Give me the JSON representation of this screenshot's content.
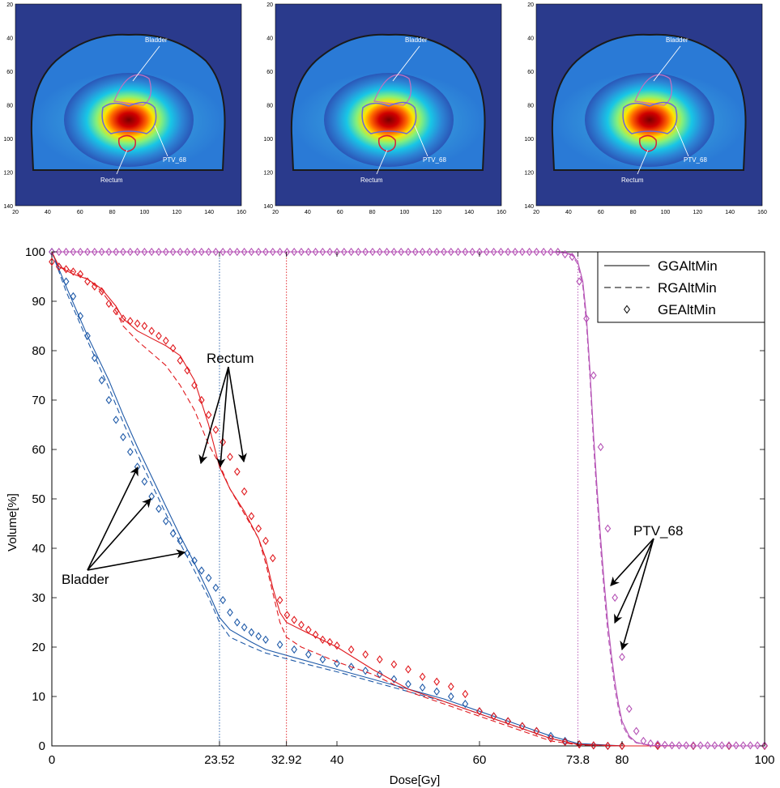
{
  "colors": {
    "background_field": "#2a3a8c",
    "body_outline": "#1a1a1a",
    "label_white": "#ffffff",
    "bladder": "#1f5aa8",
    "rectum": "#e0191e",
    "ptv": "#b552b5",
    "contour_bladder_overlay": "#c070c0",
    "contour_rectum_overlay": "#d8203a",
    "contour_ptv_overlay": "#6a6ad8"
  },
  "dose_maps": {
    "panels": [
      {
        "labels": {
          "bladder": "Bladder",
          "ptv": "PTV_68",
          "rectum": "Rectum"
        }
      },
      {
        "labels": {
          "bladder": "Bladder",
          "ptv": "PTV_68",
          "rectum": "Rectum"
        }
      },
      {
        "labels": {
          "bladder": "Bladder",
          "ptv": "PTV_68",
          "rectum": "Rectum"
        }
      }
    ],
    "y_ticks": [
      "20",
      "40",
      "60",
      "80",
      "100",
      "120",
      "140"
    ],
    "x_ticks": [
      "20",
      "40",
      "60",
      "80",
      "100",
      "120",
      "140",
      "160"
    ]
  },
  "chart_data": {
    "type": "line",
    "xlabel": "Dose[Gy]",
    "ylabel": "Volume[%]",
    "xlim": [
      0,
      100
    ],
    "ylim": [
      0,
      100
    ],
    "xticks": [
      0,
      23.52,
      32.92,
      40,
      60,
      73.8,
      80,
      100
    ],
    "xtick_labels": [
      "0",
      "23.52",
      "32.92",
      "40",
      "60",
      "73.8",
      "80",
      "100"
    ],
    "yticks": [
      0,
      10,
      20,
      30,
      40,
      50,
      60,
      70,
      80,
      90,
      100
    ],
    "ytick_labels": [
      "0",
      "10",
      "20",
      "30",
      "40",
      "50",
      "60",
      "70",
      "80",
      "90",
      "100"
    ],
    "reference_lines": [
      {
        "x": 23.52,
        "color": "#1f5aa8"
      },
      {
        "x": 32.92,
        "color": "#e0191e"
      },
      {
        "x": 73.8,
        "color": "#b552b5"
      }
    ],
    "legend": {
      "position": "top-right",
      "entries": [
        {
          "label": "GGAltMin",
          "style": "solid"
        },
        {
          "label": "RGAltMin",
          "style": "dashed"
        },
        {
          "label": "GEAltMin",
          "style": "diamond"
        }
      ]
    },
    "annotations": [
      {
        "text": "Rectum"
      },
      {
        "text": "Bladder"
      },
      {
        "text": "PTV_68"
      }
    ],
    "series": [
      {
        "structure": "Bladder",
        "method": "GGAltMin",
        "style": "solid",
        "color": "#1f5aa8",
        "x": [
          0,
          2,
          5,
          8,
          10,
          12,
          14,
          16,
          18,
          20,
          22,
          23.52,
          25,
          28,
          30,
          35,
          40,
          45,
          50,
          55,
          60,
          65,
          70,
          73.8,
          80,
          90,
          100
        ],
        "y": [
          100,
          93,
          83,
          74,
          67,
          60.5,
          54.5,
          48.5,
          42.5,
          37,
          31,
          26,
          23.5,
          21,
          19.5,
          17.5,
          15.5,
          13.5,
          11.5,
          9.5,
          7,
          4.5,
          2,
          0.5,
          0,
          0,
          0
        ]
      },
      {
        "structure": "Bladder",
        "method": "RGAltMin",
        "style": "dashed",
        "color": "#1f5aa8",
        "x": [
          0,
          2,
          5,
          8,
          10,
          12,
          14,
          16,
          18,
          20,
          22,
          23.52,
          25,
          28,
          30,
          35,
          40,
          45,
          50,
          55,
          60,
          65,
          70,
          73.8,
          80,
          90,
          100
        ],
        "y": [
          100,
          92,
          82,
          72.5,
          65.5,
          59,
          53,
          47,
          41,
          35.5,
          30,
          25,
          22,
          20,
          18.8,
          16.8,
          15,
          13,
          11,
          9,
          6.5,
          4,
          1.5,
          0.3,
          0,
          0,
          0
        ]
      },
      {
        "structure": "Bladder",
        "method": "GEAltMin",
        "style": "diamond",
        "color": "#1f5aa8",
        "x": [
          0,
          1,
          2,
          3,
          4,
          5,
          6,
          7,
          8,
          9,
          10,
          11,
          12,
          13,
          14,
          15,
          16,
          17,
          18,
          19,
          20,
          21,
          22,
          23,
          24,
          25,
          26,
          27,
          28,
          29,
          30,
          32,
          34,
          36,
          38,
          40,
          42,
          44,
          46,
          48,
          50,
          52,
          54,
          56,
          58,
          60,
          62,
          64,
          66,
          68,
          70,
          72,
          74,
          76,
          78,
          80,
          85,
          90,
          95,
          100
        ],
        "y": [
          100,
          97,
          94,
          91,
          87,
          83,
          78.5,
          74,
          70,
          66,
          62.5,
          59.5,
          56.5,
          53.5,
          50.5,
          48,
          45.5,
          43,
          41.5,
          39,
          37.5,
          35.5,
          34,
          32,
          29.5,
          27,
          25,
          24,
          23,
          22.2,
          21.5,
          20.5,
          19.5,
          18.5,
          17.5,
          16.7,
          16,
          15.2,
          14.5,
          13.5,
          12.5,
          11.8,
          11,
          10,
          8.5,
          7,
          6,
          5,
          4,
          3,
          2,
          1,
          0.3,
          0.1,
          0,
          0,
          0,
          0,
          0,
          0
        ]
      },
      {
        "structure": "Rectum",
        "method": "GGAltMin",
        "style": "solid",
        "color": "#e0191e",
        "x": [
          0,
          1,
          3,
          5,
          7,
          9,
          10,
          12,
          14,
          16,
          18,
          20,
          22,
          23.52,
          25,
          27,
          29,
          30,
          31,
          32,
          32.92,
          35,
          40,
          45,
          50,
          55,
          60,
          65,
          70,
          73.8,
          80,
          90,
          100
        ],
        "y": [
          100,
          97,
          95.5,
          94.5,
          92.5,
          89,
          86.5,
          84,
          82.5,
          81,
          79,
          74,
          65,
          56.5,
          52,
          47.5,
          42,
          38,
          32,
          27,
          25,
          23.5,
          20,
          15.5,
          11.5,
          9,
          6.5,
          4,
          1.5,
          0.3,
          0,
          0,
          0
        ]
      },
      {
        "structure": "Rectum",
        "method": "RGAltMin",
        "style": "dashed",
        "color": "#e0191e",
        "x": [
          0,
          1,
          3,
          5,
          7,
          9,
          10,
          12,
          14,
          16,
          18,
          20,
          22,
          23.52,
          25,
          27,
          29,
          30,
          31,
          32,
          32.92,
          35,
          40,
          45,
          50,
          55,
          60,
          65,
          70,
          73.8,
          80,
          90,
          100
        ],
        "y": [
          100,
          97,
          96,
          94.5,
          92,
          88,
          85,
          82,
          79.5,
          77,
          73,
          68,
          61,
          57,
          52,
          47,
          42,
          37,
          31,
          25,
          22,
          20,
          17,
          14.5,
          11,
          8.5,
          6,
          3.5,
          1,
          0.2,
          0,
          0,
          0
        ]
      },
      {
        "structure": "Rectum",
        "method": "GEAltMin",
        "style": "diamond",
        "color": "#e0191e",
        "x": [
          0,
          1,
          2,
          3,
          4,
          5,
          6,
          7,
          8,
          9,
          10,
          11,
          12,
          13,
          14,
          15,
          16,
          17,
          18,
          19,
          20,
          21,
          22,
          23,
          24,
          25,
          26,
          27,
          28,
          29,
          30,
          31,
          32,
          33,
          34,
          35,
          36,
          37,
          38,
          39,
          40,
          42,
          44,
          46,
          48,
          50,
          52,
          54,
          56,
          58,
          60,
          62,
          64,
          66,
          68,
          70,
          72,
          74,
          76,
          78,
          80,
          85,
          90,
          95,
          100
        ],
        "y": [
          98,
          97,
          96.5,
          96,
          95.5,
          94,
          93,
          92,
          89.5,
          88,
          86.5,
          86,
          85.5,
          85,
          84,
          83,
          82,
          80.5,
          78,
          76,
          73,
          70,
          67,
          64,
          61.5,
          58.5,
          55.5,
          51.5,
          46.5,
          44,
          41.5,
          38,
          29.5,
          26.5,
          25.5,
          24.5,
          23.5,
          22.5,
          21.5,
          21,
          20.3,
          19.5,
          18.5,
          17.5,
          16.5,
          15.5,
          14,
          13,
          12,
          10.5,
          7,
          6,
          5,
          4,
          3,
          1.5,
          0.8,
          0.3,
          0.1,
          0,
          0,
          0,
          0,
          0,
          0
        ]
      },
      {
        "structure": "PTV_68",
        "method": "GGAltMin",
        "style": "solid",
        "color": "#b552b5",
        "x": [
          0,
          70,
          72,
          73,
          73.8,
          74.5,
          75,
          75.5,
          76,
          76.5,
          77,
          77.5,
          78,
          78.5,
          79,
          79.5,
          80,
          81,
          82,
          84,
          90,
          100
        ],
        "y": [
          100,
          100,
          99.8,
          99.5,
          98,
          94,
          87,
          76,
          63,
          52,
          42,
          33,
          25,
          18.5,
          13,
          8.5,
          5,
          2,
          0.7,
          0.1,
          0,
          0
        ]
      },
      {
        "structure": "PTV_68",
        "method": "RGAltMin",
        "style": "dashed",
        "color": "#b552b5",
        "x": [
          0,
          70,
          72,
          73,
          73.8,
          74.5,
          75,
          75.5,
          76,
          76.5,
          77,
          77.5,
          78,
          78.5,
          79,
          79.5,
          80,
          81,
          82,
          84,
          90,
          100
        ],
        "y": [
          100,
          100,
          99.8,
          99.3,
          97.5,
          93,
          85.5,
          74.5,
          61,
          50,
          40,
          31,
          23,
          17,
          11.5,
          7.5,
          4.3,
          1.7,
          0.6,
          0.1,
          0,
          0
        ]
      },
      {
        "structure": "PTV_68",
        "method": "GEAltMin",
        "style": "diamond",
        "color": "#b552b5",
        "x": [
          0,
          1,
          2,
          3,
          4,
          5,
          6,
          7,
          8,
          9,
          10,
          11,
          12,
          13,
          14,
          15,
          16,
          17,
          18,
          19,
          20,
          21,
          22,
          23,
          24,
          25,
          26,
          27,
          28,
          29,
          30,
          31,
          32,
          33,
          34,
          35,
          36,
          37,
          38,
          39,
          40,
          41,
          42,
          43,
          44,
          45,
          46,
          47,
          48,
          49,
          50,
          51,
          52,
          53,
          54,
          55,
          56,
          57,
          58,
          59,
          60,
          61,
          62,
          63,
          64,
          65,
          66,
          67,
          68,
          69,
          70,
          71,
          72,
          73,
          74,
          75,
          76,
          77,
          78,
          79,
          80,
          81,
          82,
          83,
          84,
          85,
          86,
          87,
          88,
          89,
          90,
          91,
          92,
          93,
          94,
          95,
          96,
          97,
          98,
          99,
          100
        ],
        "y": [
          100,
          100,
          100,
          100,
          100,
          100,
          100,
          100,
          100,
          100,
          100,
          100,
          100,
          100,
          100,
          100,
          100,
          100,
          100,
          100,
          100,
          100,
          100,
          100,
          100,
          100,
          100,
          100,
          100,
          100,
          100,
          100,
          100,
          100,
          100,
          100,
          100,
          100,
          100,
          100,
          100,
          100,
          100,
          100,
          100,
          100,
          100,
          100,
          100,
          100,
          100,
          100,
          100,
          100,
          100,
          100,
          100,
          100,
          100,
          100,
          100,
          100,
          100,
          100,
          100,
          100,
          100,
          100,
          100,
          100,
          100,
          100,
          99.5,
          99,
          94,
          86.5,
          75,
          60.5,
          44,
          30,
          18,
          7.5,
          3,
          1,
          0.5,
          0.3,
          0.2,
          0.1,
          0.1,
          0.1,
          0.1,
          0.1,
          0.1,
          0.1,
          0.1,
          0.1,
          0.1,
          0.1,
          0.1,
          0.1,
          0.1
        ]
      }
    ]
  }
}
